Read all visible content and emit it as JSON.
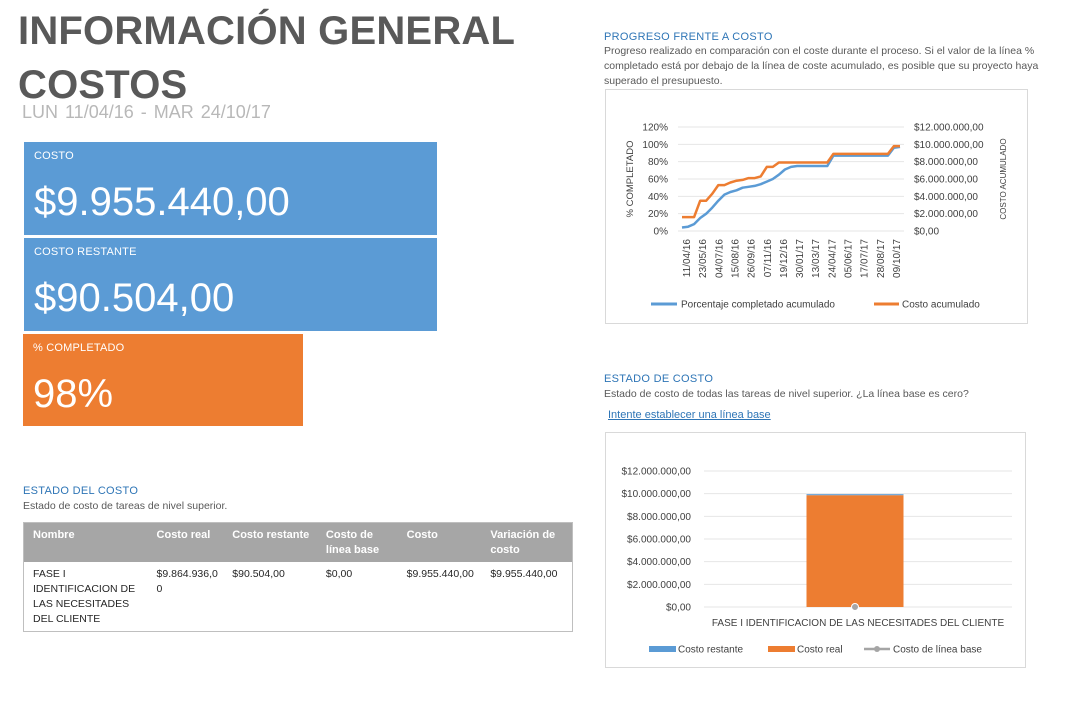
{
  "header": {
    "title_line1": "INFORMACIÓN GENERAL",
    "title_line2": "COSTOS",
    "date_start": "LUN 11/04/16 -",
    "date_end": "MAR 24/10/17"
  },
  "kpis": {
    "cost_label": "COSTO",
    "cost_value": "$9.955.440,00",
    "remaining_label": "COSTO RESTANTE",
    "remaining_value": "$90.504,00",
    "completed_label": "% COMPLETADO",
    "completed_value": "98%"
  },
  "cost_status_table": {
    "title": "ESTADO DEL COSTO",
    "description": "Estado de costo de tareas de nivel superior.",
    "headers": [
      "Nombre",
      "Costo real",
      "Costo restante",
      "Costo de línea base",
      "Costo",
      "Variación de costo"
    ],
    "rows": [
      [
        "FASE I IDENTIFICACION DE LAS NECESITADES DEL CLIENTE",
        "$9.864.936,00",
        "$90.504,00",
        "$0,00",
        "$9.955.440,00",
        "$9.955.440,00"
      ]
    ]
  },
  "progress_section": {
    "title": "PROGRESO FRENTE A COSTO",
    "description": "Progreso realizado en comparación con el coste durante el proceso. Si el valor de la línea % completado está por debajo de la línea de coste acumulado, es posible que su proyecto haya superado el presupuesto."
  },
  "cost_state_section": {
    "title": "ESTADO DE COSTO",
    "description": "Estado de costo de todas las tareas de nivel superior. ¿La línea base es cero?",
    "link": "Intente establecer una línea base"
  },
  "chart_data": [
    {
      "type": "line",
      "title": "",
      "ylabel": "% COMPLETADO",
      "y2label": "COSTO ACUMULADO",
      "ylim": [
        0,
        120
      ],
      "y2lim": [
        0,
        12000000
      ],
      "yticks": [
        "120%",
        "100%",
        "80%",
        "60%",
        "40%",
        "20%",
        "0%"
      ],
      "y2ticks": [
        "$12.000.000,00",
        "$10.000.000,00",
        "$8.000.000,00",
        "$6.000.000,00",
        "$4.000.000,00",
        "$2.000.000,00",
        "$0,00"
      ],
      "x_tick_labels": [
        "11/04/16",
        "23/05/16",
        "04/07/16",
        "15/08/16",
        "26/09/16",
        "07/11/16",
        "19/12/16",
        "30/01/17",
        "13/03/17",
        "24/04/17",
        "05/06/17",
        "17/07/17",
        "28/08/17",
        "09/10/17"
      ],
      "legend_position": "bottom",
      "series": [
        {
          "name": "Porcentaje completado acumulado",
          "axis": "left",
          "color": "#5b9bd5",
          "values": [
            4,
            5,
            8,
            15,
            20,
            27,
            35,
            42,
            45,
            47,
            50,
            51,
            52,
            54,
            57,
            60,
            65,
            71,
            74,
            75,
            75,
            75,
            75,
            75,
            75,
            87,
            87,
            87,
            87,
            87,
            87,
            87,
            87,
            87,
            87,
            96,
            97
          ]
        },
        {
          "name": "Costo acumulado",
          "axis": "right",
          "color": "#ed7d31",
          "values": [
            1600000,
            1600000,
            1600000,
            3500000,
            3500000,
            4300000,
            5300000,
            5300000,
            5600000,
            5800000,
            5900000,
            6100000,
            6100000,
            6300000,
            7400000,
            7400000,
            7900000,
            7900000,
            7900000,
            7900000,
            7900000,
            7900000,
            7900000,
            7900000,
            7900000,
            8900000,
            8900000,
            8900000,
            8900000,
            8900000,
            8900000,
            8900000,
            8900000,
            8900000,
            8900000,
            9800000,
            9800000
          ]
        }
      ]
    },
    {
      "type": "bar",
      "title": "",
      "categories": [
        "FASE I IDENTIFICACION DE LAS NECESITADES DEL CLIENTE"
      ],
      "ylim": [
        0,
        12000000
      ],
      "yticks": [
        "$12.000.000,00",
        "$10.000.000,00",
        "$8.000.000,00",
        "$6.000.000,00",
        "$4.000.000,00",
        "$2.000.000,00",
        "$0,00"
      ],
      "legend_position": "bottom",
      "series": [
        {
          "name": "Costo restante",
          "color": "#5b9bd5",
          "values": [
            90504
          ]
        },
        {
          "name": "Costo real",
          "color": "#ed7d31",
          "values": [
            9864936
          ]
        },
        {
          "name": "Costo de línea base",
          "color": "#a5a5a5",
          "values": [
            0
          ],
          "kind": "line-marker"
        }
      ]
    }
  ]
}
